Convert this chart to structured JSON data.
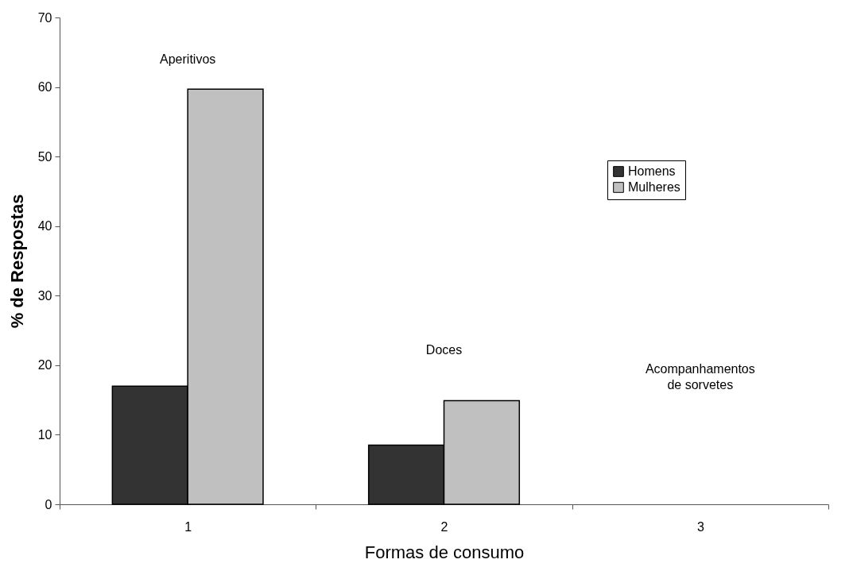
{
  "chart_data": {
    "type": "bar",
    "xlabel": "Formas de consumo",
    "ylabel": "% de Respostas",
    "categories": [
      "1",
      "2",
      "3"
    ],
    "series": [
      {
        "name": "Homens",
        "color": "#333333",
        "values": [
          17.0,
          8.5,
          null
        ]
      },
      {
        "name": "Mulheres",
        "color": "#c0c0c0",
        "values": [
          59.7,
          14.9,
          null
        ]
      }
    ],
    "ylim": [
      0,
      70
    ],
    "yticks": [
      0,
      10,
      20,
      30,
      40,
      50,
      60,
      70
    ],
    "grid": false,
    "legend": "top right",
    "annotations": [
      "Aperitivos",
      "Doces",
      "Acompanhamentos de sorvetes"
    ]
  }
}
